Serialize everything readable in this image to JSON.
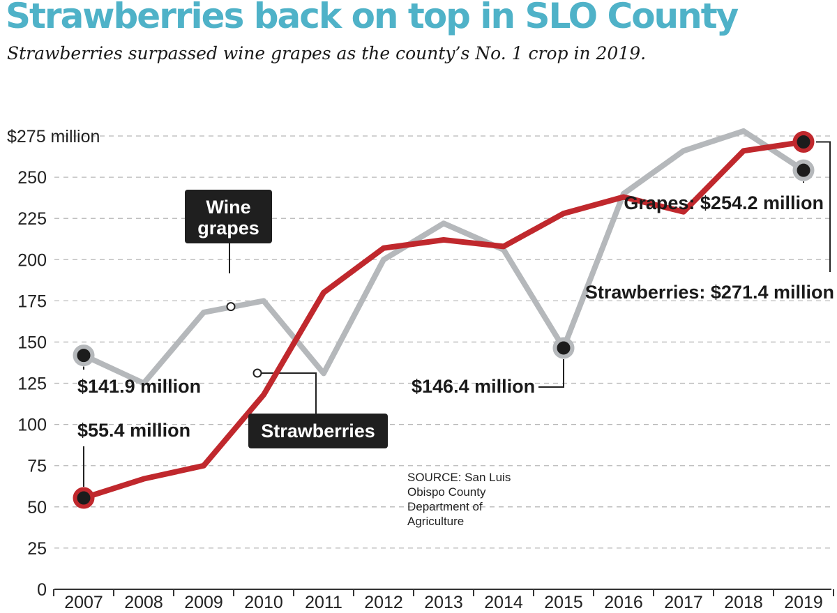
{
  "chart_data": {
    "type": "line",
    "title": "Strawberries back on top in SLO County",
    "subtitle": "Strawberries surpassed wine grapes as the county’s No. 1 crop in 2019.",
    "x": [
      "2007",
      "2008",
      "2009",
      "2010",
      "2011",
      "2012",
      "2013",
      "2014",
      "2015",
      "2016",
      "2017",
      "2018",
      "2019"
    ],
    "ylim": [
      0,
      275
    ],
    "yticks": [
      0,
      25,
      50,
      75,
      100,
      125,
      150,
      175,
      200,
      225,
      250,
      275
    ],
    "ytick_labels": [
      "0",
      "25",
      "50",
      "75",
      "100",
      "125",
      "150",
      "175",
      "200",
      "225",
      "250",
      "$275 million"
    ],
    "grid": true,
    "series": [
      {
        "name": "Wine grapes",
        "color": "#b5b8bb",
        "values": [
          141.9,
          125,
          168,
          175,
          131,
          200,
          222,
          206,
          146.4,
          240,
          266,
          278,
          254.2
        ]
      },
      {
        "name": "Strawberries",
        "color": "#c0282d",
        "values": [
          55.4,
          67,
          75,
          118,
          180,
          207,
          212,
          208,
          228,
          238,
          229,
          266,
          271.4
        ]
      }
    ],
    "annotations": [
      {
        "text": "$141.9 million",
        "series": "Wine grapes",
        "x": "2007"
      },
      {
        "text": "$55.4 million",
        "series": "Strawberries",
        "x": "2007"
      },
      {
        "text": "$146.4 million",
        "series": "Wine grapes",
        "x": "2015"
      },
      {
        "text": "Grapes: $254.2 million",
        "series": "Wine grapes",
        "x": "2019"
      },
      {
        "text": "Strawberries: $271.4 million",
        "series": "Strawberries",
        "x": "2019"
      }
    ],
    "source": [
      "SOURCE: San Luis",
      "Obispo County",
      "Department of",
      "Agriculture"
    ]
  }
}
